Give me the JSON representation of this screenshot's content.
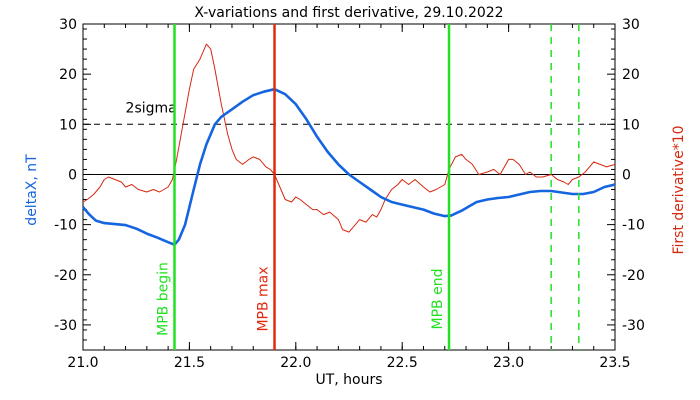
{
  "chart_data": {
    "type": "line",
    "title": "X-variations and first derivative, 29.10.2022",
    "xlabel": "UT, hours",
    "ylabel_left": "deltaX, nT",
    "ylabel_right": "First derivative*10",
    "xlim": [
      21.0,
      23.5
    ],
    "ylim": [
      -35,
      30
    ],
    "x_ticks": [
      21.0,
      21.5,
      22.0,
      22.5,
      23.0,
      23.5
    ],
    "x_tick_labels": [
      "21.0",
      "21.5",
      "22.0",
      "22.5",
      "23.0",
      "23.5"
    ],
    "y_ticks": [
      -30,
      -20,
      -10,
      0,
      10,
      20,
      30
    ],
    "y_tick_labels": [
      "-30",
      "-20",
      "-10",
      "0",
      "10",
      "20",
      "30"
    ],
    "sigma_level": 10,
    "sigma_label": "2sigma",
    "zero_level": 0,
    "series": [
      {
        "name": "deltaX, nT",
        "color": "#1565e0",
        "points": [
          [
            21.0,
            -6.5
          ],
          [
            21.03,
            -8
          ],
          [
            21.06,
            -9.2
          ],
          [
            21.1,
            -9.7
          ],
          [
            21.15,
            -9.9
          ],
          [
            21.2,
            -10.1
          ],
          [
            21.25,
            -10.8
          ],
          [
            21.3,
            -11.8
          ],
          [
            21.35,
            -12.6
          ],
          [
            21.4,
            -13.5
          ],
          [
            21.43,
            -14
          ],
          [
            21.45,
            -13
          ],
          [
            21.48,
            -10
          ],
          [
            21.5,
            -6.5
          ],
          [
            21.52,
            -3
          ],
          [
            21.55,
            2
          ],
          [
            21.58,
            6
          ],
          [
            21.62,
            10
          ],
          [
            21.65,
            11.5
          ],
          [
            21.7,
            13
          ],
          [
            21.75,
            14.5
          ],
          [
            21.8,
            15.8
          ],
          [
            21.85,
            16.5
          ],
          [
            21.9,
            17
          ],
          [
            21.95,
            16
          ],
          [
            22.0,
            14
          ],
          [
            22.05,
            11
          ],
          [
            22.1,
            7.5
          ],
          [
            22.15,
            4.5
          ],
          [
            22.2,
            2
          ],
          [
            22.25,
            0
          ],
          [
            22.3,
            -1.5
          ],
          [
            22.35,
            -3
          ],
          [
            22.4,
            -4.5
          ],
          [
            22.45,
            -5.5
          ],
          [
            22.5,
            -6
          ],
          [
            22.55,
            -6.5
          ],
          [
            22.6,
            -7
          ],
          [
            22.65,
            -7.8
          ],
          [
            22.7,
            -8.3
          ],
          [
            22.73,
            -8.2
          ],
          [
            22.78,
            -7.2
          ],
          [
            22.82,
            -6.2
          ],
          [
            22.85,
            -5.5
          ],
          [
            22.9,
            -5
          ],
          [
            22.95,
            -4.7
          ],
          [
            23.0,
            -4.5
          ],
          [
            23.05,
            -4
          ],
          [
            23.1,
            -3.5
          ],
          [
            23.15,
            -3.3
          ],
          [
            23.2,
            -3.3
          ],
          [
            23.25,
            -3.6
          ],
          [
            23.3,
            -3.9
          ],
          [
            23.35,
            -3.9
          ],
          [
            23.4,
            -3.5
          ],
          [
            23.45,
            -2.5
          ],
          [
            23.5,
            -2
          ]
        ]
      },
      {
        "name": "First derivative*10",
        "color": "#d62810",
        "points": [
          [
            21.0,
            -5.5
          ],
          [
            21.02,
            -5
          ],
          [
            21.05,
            -4
          ],
          [
            21.08,
            -2.5
          ],
          [
            21.1,
            -1
          ],
          [
            21.12,
            -0.5
          ],
          [
            21.15,
            -1
          ],
          [
            21.18,
            -1.5
          ],
          [
            21.2,
            -2.5
          ],
          [
            21.23,
            -2
          ],
          [
            21.26,
            -3
          ],
          [
            21.3,
            -3.5
          ],
          [
            21.33,
            -3
          ],
          [
            21.36,
            -3.5
          ],
          [
            21.4,
            -2.5
          ],
          [
            21.42,
            -1
          ],
          [
            21.44,
            3
          ],
          [
            21.47,
            10
          ],
          [
            21.5,
            17
          ],
          [
            21.52,
            21
          ],
          [
            21.55,
            23
          ],
          [
            21.58,
            26
          ],
          [
            21.6,
            25
          ],
          [
            21.62,
            21
          ],
          [
            21.65,
            14
          ],
          [
            21.68,
            8
          ],
          [
            21.7,
            5
          ],
          [
            21.72,
            3
          ],
          [
            21.75,
            2
          ],
          [
            21.78,
            3
          ],
          [
            21.8,
            3.5
          ],
          [
            21.83,
            3
          ],
          [
            21.86,
            1.5
          ],
          [
            21.88,
            1
          ],
          [
            21.9,
            0
          ],
          [
            21.92,
            -2
          ],
          [
            21.95,
            -5
          ],
          [
            21.98,
            -5.5
          ],
          [
            22.0,
            -4.5
          ],
          [
            22.02,
            -5
          ],
          [
            22.05,
            -6
          ],
          [
            22.08,
            -7
          ],
          [
            22.1,
            -7
          ],
          [
            22.13,
            -8
          ],
          [
            22.16,
            -7.5
          ],
          [
            22.2,
            -9
          ],
          [
            22.22,
            -11
          ],
          [
            22.25,
            -11.5
          ],
          [
            22.28,
            -10
          ],
          [
            22.3,
            -9
          ],
          [
            22.33,
            -9.5
          ],
          [
            22.36,
            -8
          ],
          [
            22.38,
            -8.5
          ],
          [
            22.4,
            -7
          ],
          [
            22.42,
            -5
          ],
          [
            22.45,
            -3
          ],
          [
            22.48,
            -2
          ],
          [
            22.5,
            -1
          ],
          [
            22.53,
            -2
          ],
          [
            22.56,
            -1
          ],
          [
            22.6,
            -2.5
          ],
          [
            22.63,
            -3.5
          ],
          [
            22.66,
            -3
          ],
          [
            22.7,
            -2
          ],
          [
            22.72,
            1
          ],
          [
            22.75,
            3.5
          ],
          [
            22.78,
            4
          ],
          [
            22.8,
            3
          ],
          [
            22.83,
            2
          ],
          [
            22.86,
            0
          ],
          [
            22.9,
            0.5
          ],
          [
            22.93,
            1
          ],
          [
            22.96,
            0
          ],
          [
            23.0,
            3
          ],
          [
            23.02,
            3
          ],
          [
            23.05,
            2
          ],
          [
            23.08,
            0
          ],
          [
            23.1,
            0.5
          ],
          [
            23.13,
            -0.5
          ],
          [
            23.16,
            -0.5
          ],
          [
            23.2,
            0
          ],
          [
            23.23,
            -1
          ],
          [
            23.26,
            -1.5
          ],
          [
            23.28,
            -2
          ],
          [
            23.3,
            -1
          ],
          [
            23.33,
            -0.5
          ],
          [
            23.36,
            0.5
          ],
          [
            23.4,
            2.5
          ],
          [
            23.43,
            2
          ],
          [
            23.46,
            1.5
          ],
          [
            23.5,
            2
          ]
        ]
      }
    ],
    "vertical_markers": [
      {
        "x": 21.43,
        "label": "MPB begin",
        "color": "#22e022",
        "style": "solid"
      },
      {
        "x": 21.9,
        "label": "MPB max",
        "color": "#e02a10",
        "style": "solid"
      },
      {
        "x": 22.72,
        "label": "MPB end",
        "color": "#22e022",
        "style": "solid"
      },
      {
        "x": 23.2,
        "label": "",
        "color": "#22e022",
        "style": "dashed"
      },
      {
        "x": 23.33,
        "label": "",
        "color": "#22e022",
        "style": "dashed"
      }
    ],
    "grid": false,
    "colors": {
      "left_axis_label": "#1565e0",
      "right_axis_label": "#d62810",
      "axis": "#000000"
    }
  }
}
